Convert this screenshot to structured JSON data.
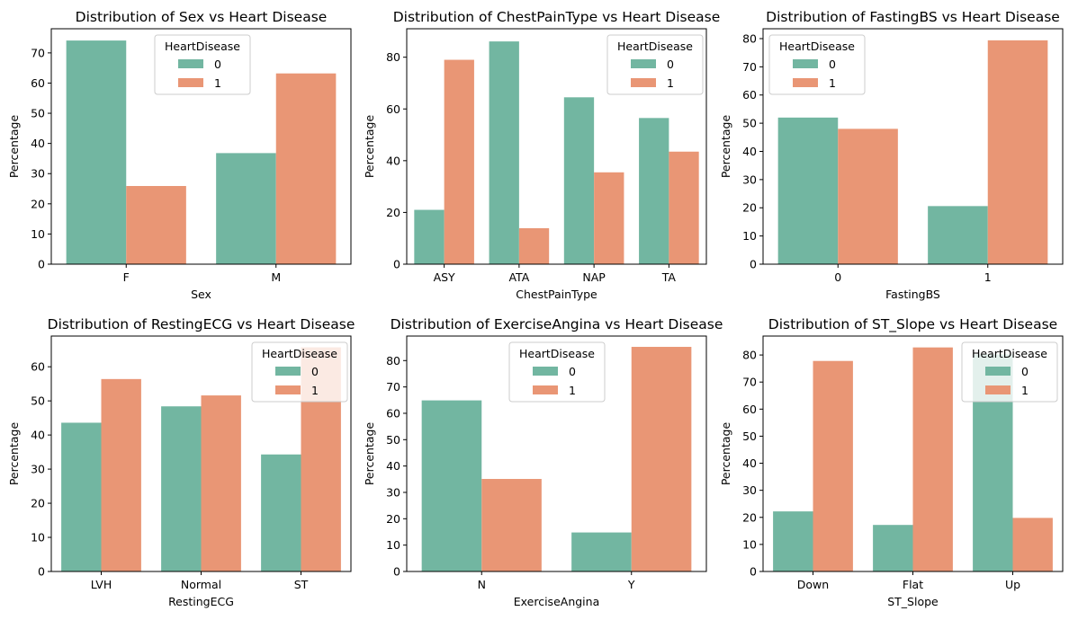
{
  "colors": {
    "hd0": "#72b6a1",
    "hd1": "#e99675"
  },
  "chart_data": [
    {
      "type": "bar",
      "title": "Distribution of Sex vs Heart Disease",
      "xlabel": "Sex",
      "ylabel": "Percentage",
      "categories": [
        "F",
        "M"
      ],
      "ylim": [
        0,
        78
      ],
      "yticks": [
        0,
        10,
        20,
        30,
        40,
        50,
        60,
        70
      ],
      "legend_title": "HeartDisease",
      "legend_position": "top-center",
      "series": [
        {
          "name": "0",
          "values": [
            74.1,
            36.8
          ]
        },
        {
          "name": "1",
          "values": [
            25.9,
            63.2
          ]
        }
      ]
    },
    {
      "type": "bar",
      "title": "Distribution of ChestPainType vs Heart Disease",
      "xlabel": "ChestPainType",
      "ylabel": "Percentage",
      "categories": [
        "ASY",
        "ATA",
        "NAP",
        "TA"
      ],
      "ylim": [
        0,
        91
      ],
      "yticks": [
        0,
        20,
        40,
        60,
        80
      ],
      "legend_title": "HeartDisease",
      "legend_position": "top-right",
      "series": [
        {
          "name": "0",
          "values": [
            21.0,
            86.1,
            64.5,
            56.5
          ]
        },
        {
          "name": "1",
          "values": [
            79.0,
            13.9,
            35.5,
            43.5
          ]
        }
      ]
    },
    {
      "type": "bar",
      "title": "Distribution of FastingBS vs Heart Disease",
      "xlabel": "FastingBS",
      "ylabel": "Percentage",
      "categories": [
        "0",
        "1"
      ],
      "ylim": [
        0,
        83.5
      ],
      "yticks": [
        0,
        10,
        20,
        30,
        40,
        50,
        60,
        70,
        80
      ],
      "legend_title": "HeartDisease",
      "legend_position": "top-left",
      "series": [
        {
          "name": "0",
          "values": [
            52.0,
            20.6
          ]
        },
        {
          "name": "1",
          "values": [
            48.0,
            79.4
          ]
        }
      ]
    },
    {
      "type": "bar",
      "title": "Distribution of RestingECG vs Heart Disease",
      "xlabel": "RestingECG",
      "ylabel": "Percentage",
      "categories": [
        "LVH",
        "Normal",
        "ST"
      ],
      "ylim": [
        0,
        69
      ],
      "yticks": [
        0,
        10,
        20,
        30,
        40,
        50,
        60
      ],
      "legend_title": "HeartDisease",
      "legend_position": "top-right",
      "series": [
        {
          "name": "0",
          "values": [
            43.6,
            48.4,
            34.3
          ]
        },
        {
          "name": "1",
          "values": [
            56.4,
            51.6,
            65.7
          ]
        }
      ]
    },
    {
      "type": "bar",
      "title": "Distribution of ExerciseAngina vs Heart Disease",
      "xlabel": "ExerciseAngina",
      "ylabel": "Percentage",
      "categories": [
        "N",
        "Y"
      ],
      "ylim": [
        0,
        89.3
      ],
      "yticks": [
        0,
        10,
        20,
        30,
        40,
        50,
        60,
        70,
        80
      ],
      "legend_title": "HeartDisease",
      "legend_position": "top-center",
      "series": [
        {
          "name": "0",
          "values": [
            64.9,
            14.8
          ]
        },
        {
          "name": "1",
          "values": [
            35.1,
            85.2
          ]
        }
      ]
    },
    {
      "type": "bar",
      "title": "Distribution of ST_Slope vs Heart Disease",
      "xlabel": "ST_Slope",
      "ylabel": "Percentage",
      "categories": [
        "Down",
        "Flat",
        "Up"
      ],
      "ylim": [
        0,
        87
      ],
      "yticks": [
        0,
        10,
        20,
        30,
        40,
        50,
        60,
        70,
        80
      ],
      "legend_title": "HeartDisease",
      "legend_position": "top-right",
      "series": [
        {
          "name": "0",
          "values": [
            22.2,
            17.2,
            80.2
          ]
        },
        {
          "name": "1",
          "values": [
            77.8,
            82.8,
            19.8
          ]
        }
      ]
    }
  ]
}
